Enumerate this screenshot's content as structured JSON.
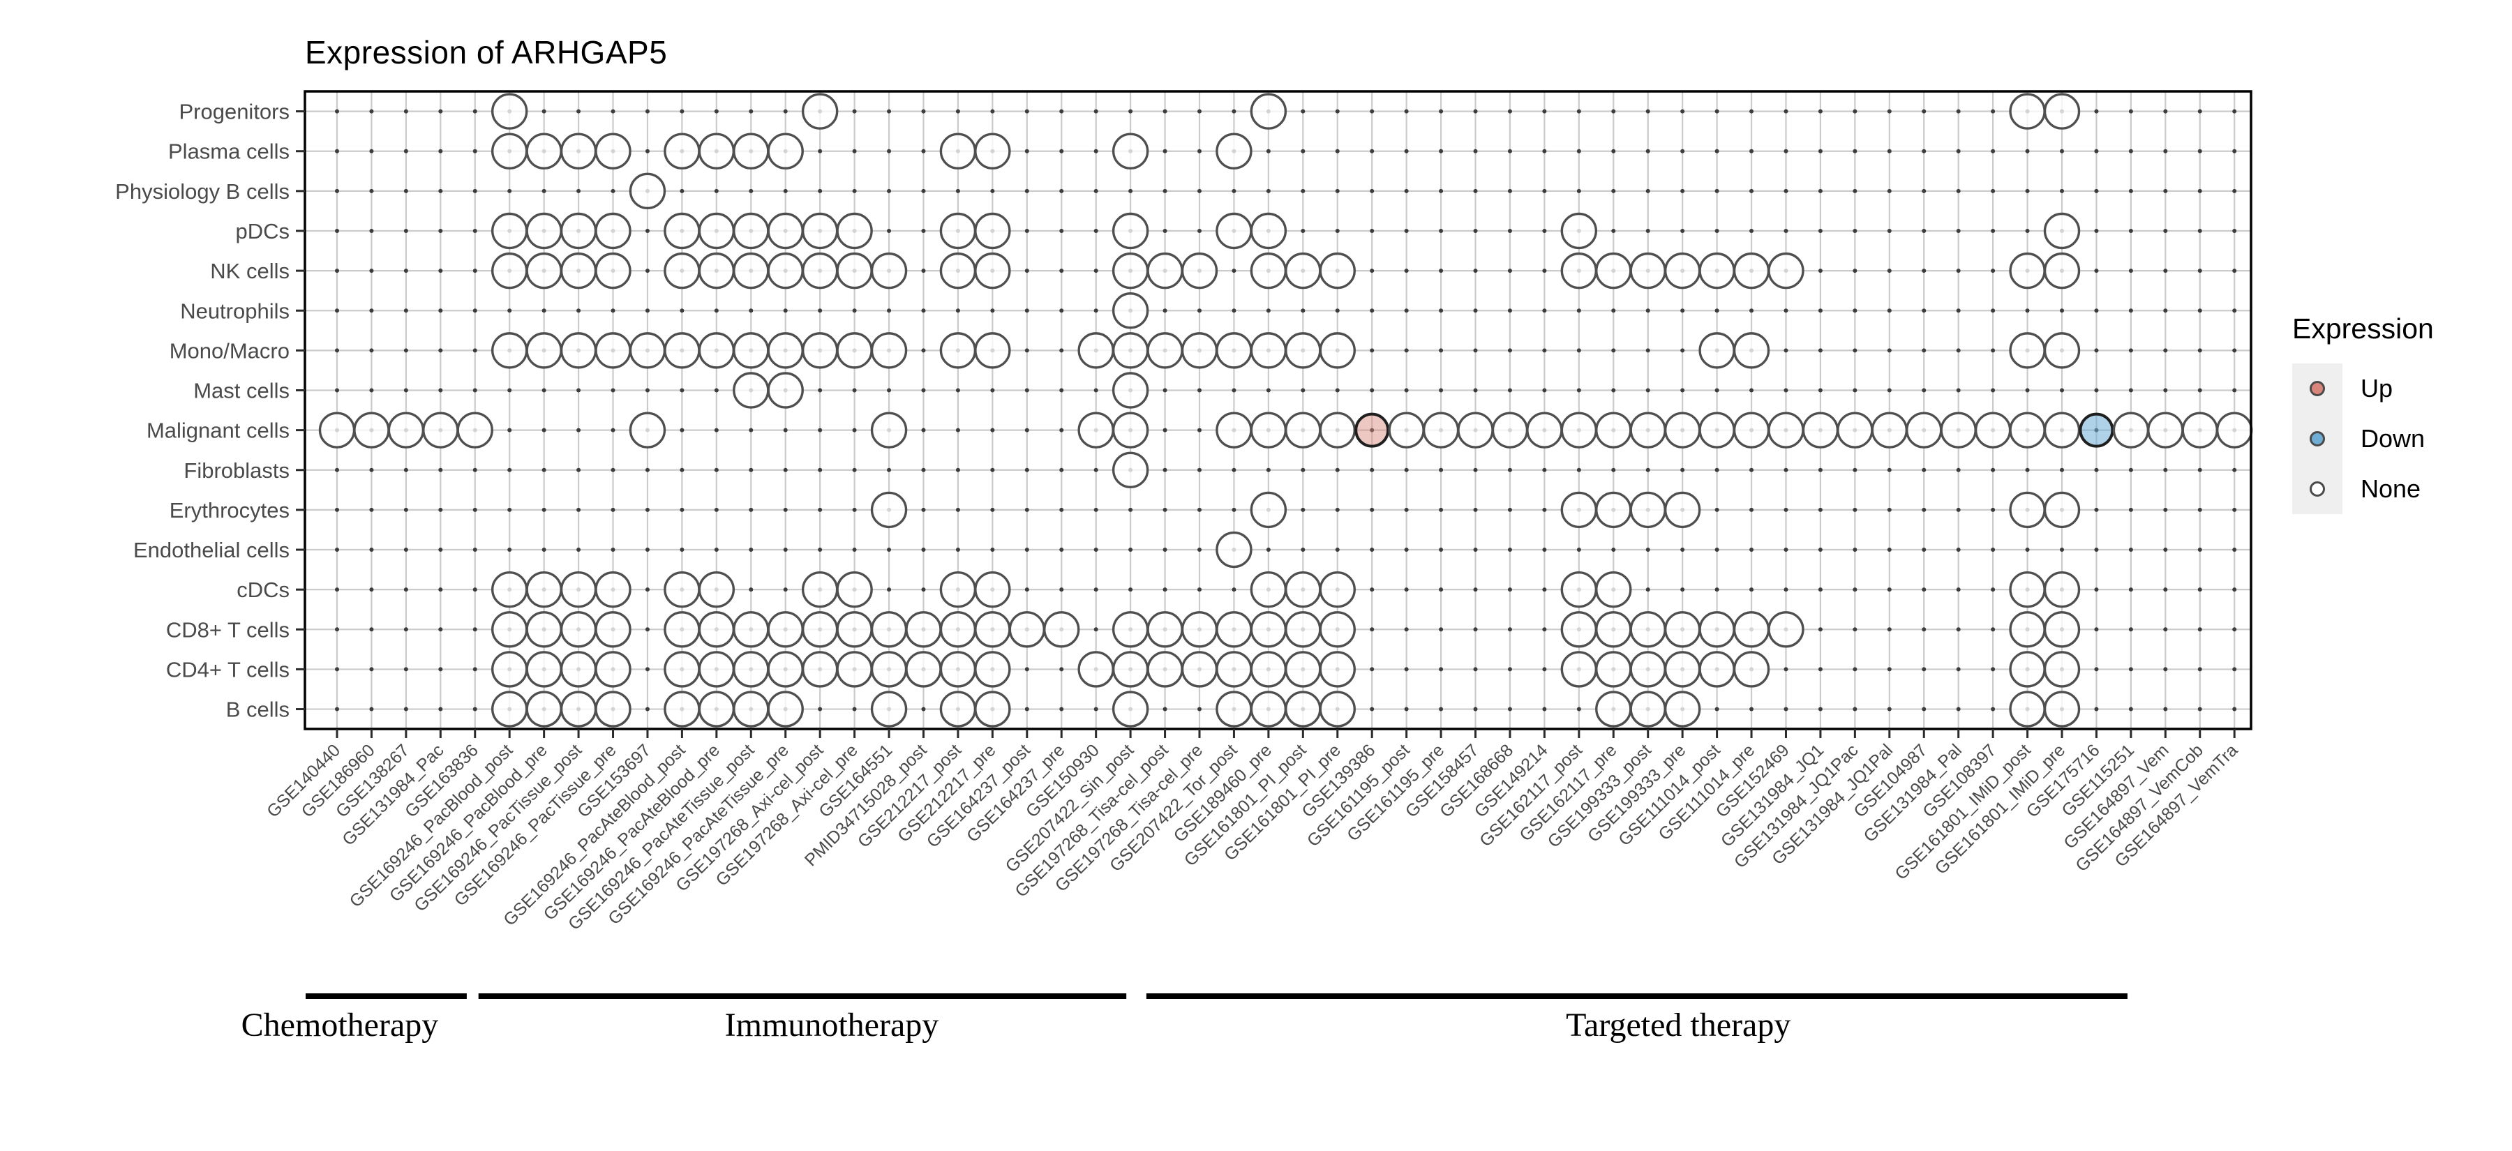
{
  "title": "Expression of ARHGAP5",
  "legend": {
    "title": "Expression",
    "items": [
      {
        "label": "Up",
        "color": "#D8857B"
      },
      {
        "label": "Down",
        "color": "#6FADD5"
      },
      {
        "label": "None",
        "color": "#FFFFFF"
      }
    ]
  },
  "groups": [
    {
      "label": "Chemotherapy",
      "bar_from_col": 0.09,
      "bar_to_col": 4.76,
      "label_center_col": 1.08
    },
    {
      "label": "Immunotherapy",
      "bar_from_col": 5.1,
      "bar_to_col": 23.88,
      "label_center_col": 15.34
    },
    {
      "label": "Targeted therapy",
      "bar_from_col": 24.46,
      "bar_to_col": 52.9,
      "label_center_col": 39.88
    }
  ],
  "chart_data": {
    "type": "scatter",
    "subtype": "categorical-dot-matrix",
    "title": "Expression of ARHGAP5",
    "grid": true,
    "legend_position": "right",
    "x_categories": [
      "GSE140440",
      "GSE186960",
      "GSE138267",
      "GSE131984_Pac",
      "GSE163836",
      "GSE169246_PacBlood_post",
      "GSE169246_PacBlood_pre",
      "GSE169246_PacTissue_post",
      "GSE169246_PacTissue_pre",
      "GSE153697",
      "GSE169246_PacAteBlood_post",
      "GSE169246_PacAteBlood_pre",
      "GSE169246_PacAteTissue_post",
      "GSE169246_PacAteTissue_pre",
      "GSE197268_Axi-cel_post",
      "GSE197268_Axi-cel_pre",
      "GSE164551",
      "PMID34715028_post",
      "GSE212217_post",
      "GSE212217_pre",
      "GSE164237_post",
      "GSE164237_pre",
      "GSE150930",
      "GSE207422_Sin_post",
      "GSE197268_Tisa-cel_post",
      "GSE197268_Tisa-cel_pre",
      "GSE207422_Tor_post",
      "GSE189460_pre",
      "GSE161801_PI_post",
      "GSE161801_PI_pre",
      "GSE139386",
      "GSE161195_post",
      "GSE161195_pre",
      "GSE158457",
      "GSE168668",
      "GSE149214",
      "GSE162117_post",
      "GSE162117_pre",
      "GSE199333_post",
      "GSE199333_pre",
      "GSE111014_post",
      "GSE111014_pre",
      "GSE152469",
      "GSE131984_JQ1",
      "GSE131984_JQ1Pac",
      "GSE131984_JQ1Pal",
      "GSE104987",
      "GSE131984_Pal",
      "GSE108397",
      "GSE161801_IMiD_post",
      "GSE161801_IMiD_pre",
      "GSE175716",
      "GSE115251",
      "GSE164897_Vem",
      "GSE164897_VemCob",
      "GSE164897_VemTra"
    ],
    "y_categories": [
      "Progenitors",
      "Plasma cells",
      "Physiology B cells",
      "pDCs",
      "NK cells",
      "Neutrophils",
      "Mono/Macro",
      "Mast cells",
      "Malignant cells",
      "Fibroblasts",
      "Erythrocytes",
      "Endothelial cells",
      "cDCs",
      "CD8+ T cells",
      "CD4+ T cells",
      "B cells"
    ],
    "points_by_row": {
      "Progenitors": [
        6,
        15,
        28,
        50,
        51
      ],
      "Plasma cells": [
        6,
        7,
        8,
        9,
        11,
        12,
        13,
        14,
        19,
        20,
        24,
        27
      ],
      "Physiology B cells": [
        10
      ],
      "pDCs": [
        6,
        7,
        8,
        9,
        11,
        12,
        13,
        14,
        15,
        16,
        19,
        20,
        24,
        27,
        28,
        37,
        51
      ],
      "NK cells": [
        6,
        7,
        8,
        9,
        11,
        12,
        13,
        14,
        15,
        16,
        17,
        19,
        20,
        24,
        25,
        26,
        28,
        29,
        30,
        37,
        38,
        39,
        40,
        41,
        42,
        43,
        50,
        51
      ],
      "Neutrophils": [
        24
      ],
      "Mono/Macro": [
        6,
        7,
        8,
        9,
        10,
        11,
        12,
        13,
        14,
        15,
        16,
        17,
        19,
        20,
        23,
        24,
        25,
        26,
        27,
        28,
        29,
        30,
        41,
        42,
        50,
        51
      ],
      "Mast cells": [
        13,
        14,
        24
      ],
      "Malignant cells": [
        1,
        2,
        3,
        4,
        5,
        10,
        17,
        23,
        24,
        27,
        28,
        29,
        30,
        31,
        32,
        33,
        34,
        35,
        36,
        37,
        38,
        39,
        40,
        41,
        42,
        43,
        44,
        45,
        46,
        47,
        48,
        49,
        50,
        51,
        52,
        53,
        54,
        55,
        56
      ],
      "Fibroblasts": [
        24
      ],
      "Erythrocytes": [
        17,
        28,
        37,
        38,
        39,
        40,
        50,
        51
      ],
      "Endothelial cells": [
        27
      ],
      "cDCs": [
        6,
        7,
        8,
        9,
        11,
        12,
        15,
        16,
        19,
        20,
        28,
        29,
        30,
        37,
        38,
        50,
        51
      ],
      "CD8+ T cells": [
        6,
        7,
        8,
        9,
        11,
        12,
        13,
        14,
        15,
        16,
        17,
        18,
        19,
        20,
        21,
        22,
        24,
        25,
        26,
        27,
        28,
        29,
        30,
        37,
        38,
        39,
        40,
        41,
        42,
        43,
        50,
        51
      ],
      "CD4+ T cells": [
        6,
        7,
        8,
        9,
        11,
        12,
        13,
        14,
        15,
        16,
        17,
        18,
        19,
        20,
        23,
        24,
        25,
        26,
        27,
        28,
        29,
        30,
        37,
        38,
        39,
        40,
        41,
        42,
        50,
        51
      ],
      "B cells": [
        6,
        7,
        8,
        9,
        11,
        12,
        13,
        14,
        17,
        19,
        20,
        24,
        27,
        28,
        29,
        30,
        38,
        39,
        40,
        50,
        51
      ]
    },
    "highlights": [
      {
        "cell_type": "Malignant cells",
        "dataset": "GSE139386",
        "col": 31,
        "state": "Up"
      },
      {
        "cell_type": "Malignant cells",
        "dataset": "GSE175716",
        "col": 52,
        "state": "Down"
      }
    ],
    "colors": {
      "up": "#D8857B",
      "down": "#6FADD5",
      "none_fill": "#FFFFFF",
      "circle_stroke": "#4F4F4F",
      "highlight_stroke": "#1F1F1F",
      "grid": "#CBCBCB",
      "grid_dot": "#3D3D3D",
      "axis_text": "#4A4A4A",
      "frame": "#000000"
    }
  }
}
